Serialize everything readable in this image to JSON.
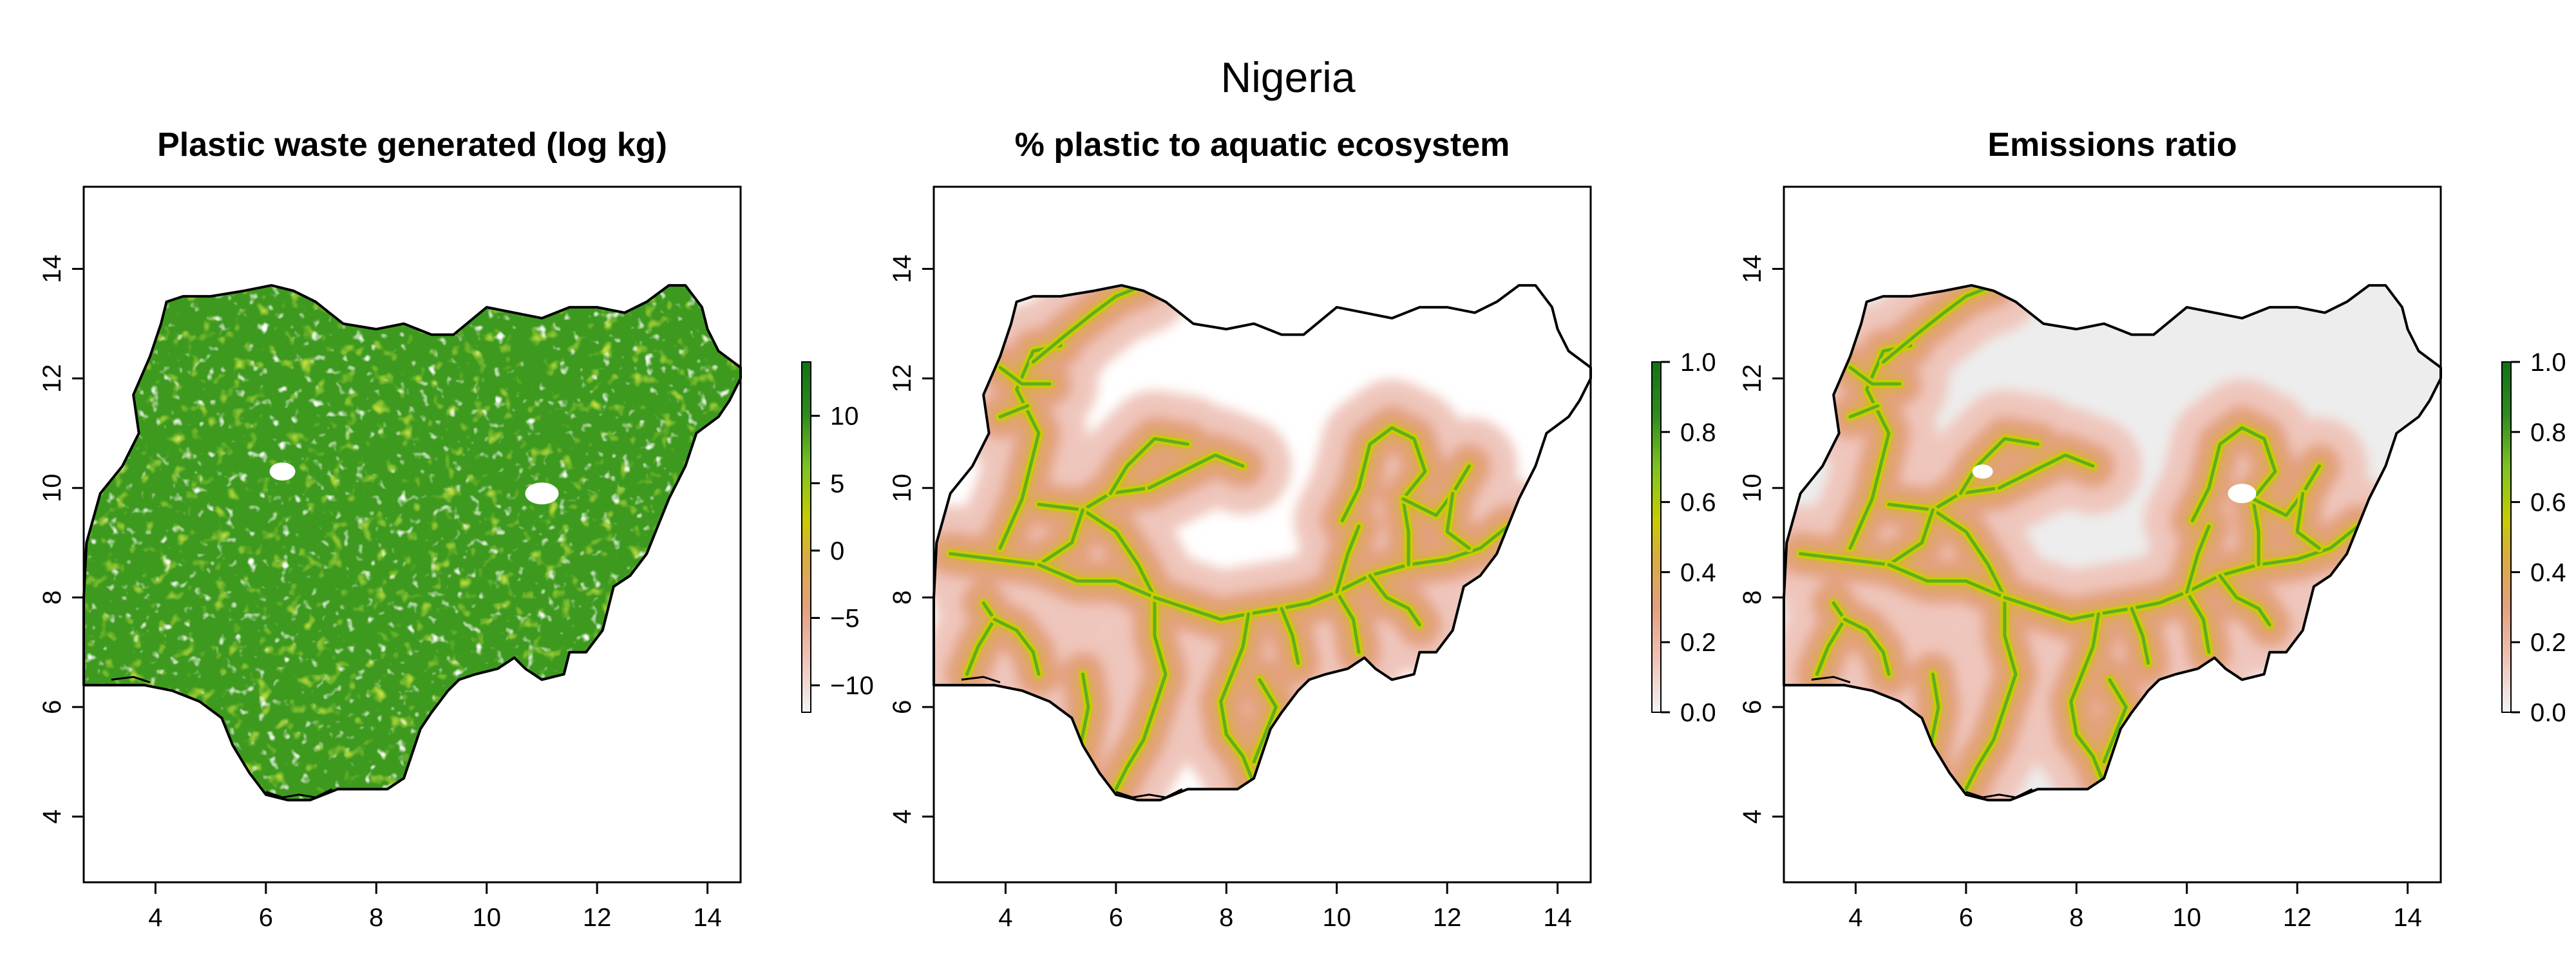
{
  "figure": {
    "title": "Nigeria"
  },
  "colors": {
    "ramp": [
      "#f2f2f2",
      "#efc6bc",
      "#e3a07d",
      "#d9ad3c",
      "#c8cc00",
      "#7ec320",
      "#2e8b1c",
      "#117411"
    ],
    "land_masked": "#ededed",
    "outline": "#000000",
    "frame": "#000000"
  },
  "panels": [
    {
      "title": "Plastic waste generated (log kg)",
      "variable": "plastic_waste_log_kg",
      "fill_mode": "full",
      "x_ticks": [
        "4",
        "6",
        "8",
        "10",
        "12",
        "14"
      ],
      "y_ticks": [
        "4",
        "6",
        "8",
        "10",
        "12",
        "14"
      ],
      "legend": {
        "range": [
          -12,
          14
        ],
        "ticks": [
          "−10",
          "−5",
          "0",
          "5",
          "10"
        ],
        "tick_values": [
          -10,
          -5,
          0,
          5,
          10
        ]
      }
    },
    {
      "title": "% plastic to aquatic ecosystem",
      "variable": "pct_plastic_to_aquatic",
      "fill_mode": "rivers",
      "x_ticks": [
        "4",
        "6",
        "8",
        "10",
        "12",
        "14"
      ],
      "y_ticks": [
        "4",
        "6",
        "8",
        "10",
        "12",
        "14"
      ],
      "legend": {
        "range": [
          0,
          1
        ],
        "ticks": [
          "0.0",
          "0.2",
          "0.4",
          "0.6",
          "0.8",
          "1.0"
        ],
        "tick_values": [
          0,
          0.2,
          0.4,
          0.6,
          0.8,
          1.0
        ]
      }
    },
    {
      "title": "Emissions ratio",
      "variable": "emissions_ratio",
      "fill_mode": "rivers_on_grey",
      "x_ticks": [
        "4",
        "6",
        "8",
        "10",
        "12",
        "14"
      ],
      "y_ticks": [
        "4",
        "6",
        "8",
        "10",
        "12",
        "14"
      ],
      "legend": {
        "range": [
          0,
          1
        ],
        "ticks": [
          "0.0",
          "0.2",
          "0.4",
          "0.6",
          "0.8",
          "1.0"
        ],
        "tick_values": [
          0,
          0.2,
          0.4,
          0.6,
          0.8,
          1.0
        ]
      }
    }
  ],
  "map_extent": {
    "lon": [
      2.7,
      14.6
    ],
    "lat": [
      2.8,
      15.5
    ]
  }
}
